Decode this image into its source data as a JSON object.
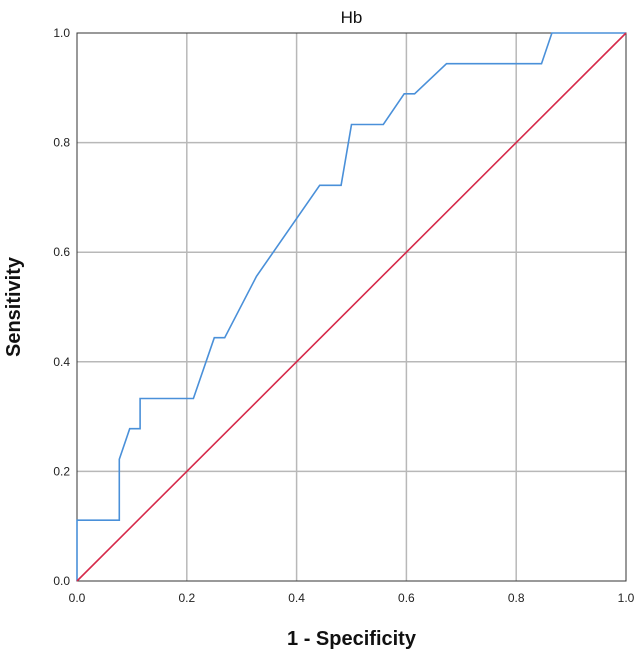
{
  "chart_data": {
    "type": "line",
    "title": "Hb",
    "xlabel": "1 - Specificity",
    "ylabel": "Sensitivity",
    "xlim": [
      0,
      1
    ],
    "ylim": [
      0,
      1
    ],
    "grid": true,
    "x_ticks": [
      "0.0",
      "0.2",
      "0.4",
      "0.6",
      "0.8",
      "1.0"
    ],
    "y_ticks": [
      "0.0",
      "0.2",
      "0.4",
      "0.6",
      "0.8",
      "1.0"
    ],
    "series": [
      {
        "color": "#4a90d9",
        "points": [
          [
            0.0,
            0.0
          ],
          [
            0.0,
            0.111
          ],
          [
            0.077,
            0.111
          ],
          [
            0.077,
            0.222
          ],
          [
            0.096,
            0.278
          ],
          [
            0.115,
            0.278
          ],
          [
            0.115,
            0.333
          ],
          [
            0.212,
            0.333
          ],
          [
            0.25,
            0.444
          ],
          [
            0.269,
            0.444
          ],
          [
            0.327,
            0.556
          ],
          [
            0.442,
            0.722
          ],
          [
            0.481,
            0.722
          ],
          [
            0.5,
            0.833
          ],
          [
            0.558,
            0.833
          ],
          [
            0.596,
            0.889
          ],
          [
            0.615,
            0.889
          ],
          [
            0.673,
            0.944
          ],
          [
            0.846,
            0.944
          ],
          [
            0.865,
            1.0
          ],
          [
            1.0,
            1.0
          ]
        ]
      },
      {
        "color": "#d6294a",
        "points": [
          [
            0.0,
            0.0
          ],
          [
            1.0,
            1.0
          ]
        ]
      }
    ]
  }
}
